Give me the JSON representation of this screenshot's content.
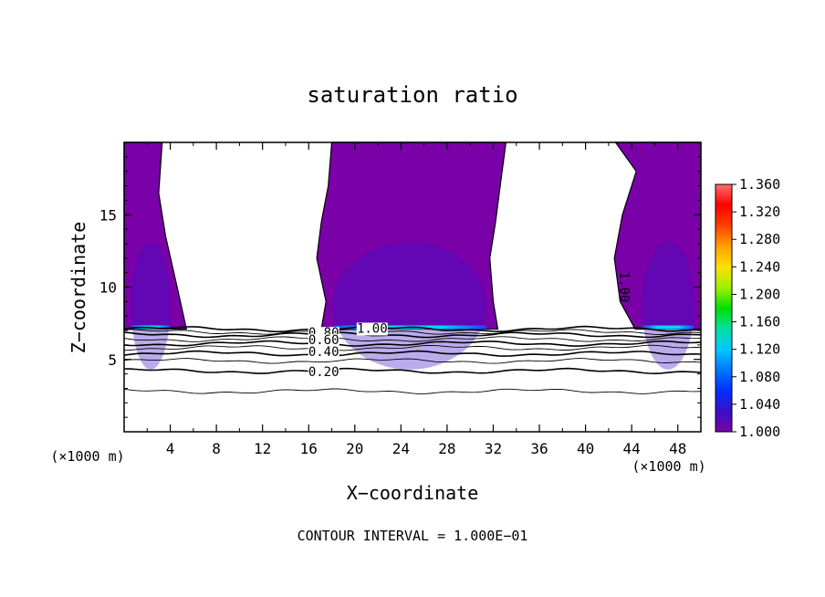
{
  "chart_data": {
    "type": "heatmap",
    "title": "saturation ratio",
    "xlabel": "X−coordinate",
    "ylabel": "Z−coordinate",
    "x_unit": "(×1000 m)",
    "z_unit": "(×1000 m)",
    "xlim": [
      0,
      50
    ],
    "ylim": [
      0,
      20
    ],
    "x_ticks": [
      4,
      8,
      12,
      16,
      20,
      24,
      28,
      32,
      36,
      40,
      44,
      48
    ],
    "y_ticks": [
      5,
      10,
      15
    ],
    "footer": "CONTOUR INTERVAL = 1.000E−01",
    "colorbar": {
      "min": 1.0,
      "max": 1.36,
      "ticks": [
        "1.360",
        "1.320",
        "1.280",
        "1.240",
        "1.200",
        "1.160",
        "1.120",
        "1.080",
        "1.040",
        "1.000"
      ],
      "colors": [
        "#7a00a8",
        "#3a10c8",
        "#0030ff",
        "#0078ff",
        "#00c8ff",
        "#00e0a0",
        "#00e000",
        "#a0f000",
        "#ffe000",
        "#ffa000",
        "#ff4000",
        "#ff0000",
        "#ff7070"
      ]
    },
    "contour_labels": [
      {
        "text": "1.00",
        "x": 21.5,
        "z": 7.1
      },
      {
        "text": "0.80",
        "x": 17.3,
        "z": 6.8
      },
      {
        "text": "0.60",
        "x": 17.3,
        "z": 6.3
      },
      {
        "text": "0.40",
        "x": 17.3,
        "z": 5.5
      },
      {
        "text": "0.20",
        "x": 17.3,
        "z": 4.1
      },
      {
        "text": "1.00",
        "x": 43.3,
        "z": 10.0
      }
    ],
    "supersaturated_regions": [
      {
        "name": "left",
        "x_ranges": [
          [
            0,
            3.3
          ],
          [
            0,
            3.0
          ],
          [
            0,
            3.6
          ],
          [
            0,
            4.6
          ],
          [
            0,
            5.4
          ]
        ],
        "z_levels": [
          20,
          16.5,
          13.5,
          10,
          7.1
        ]
      },
      {
        "name": "center",
        "x_ranges": [
          [
            18.0,
            33.1
          ],
          [
            17.7,
            32.6
          ],
          [
            17.1,
            32.2
          ],
          [
            16.7,
            31.7
          ],
          [
            17.5,
            32.0
          ],
          [
            17.1,
            32.4
          ]
        ],
        "z_levels": [
          20,
          17,
          14.5,
          12,
          9,
          7.1
        ]
      },
      {
        "name": "right",
        "x_ranges": [
          [
            42.6,
            50
          ],
          [
            44.4,
            50
          ],
          [
            43.2,
            50
          ],
          [
            42.5,
            50
          ],
          [
            43.0,
            50
          ],
          [
            44.3,
            50
          ]
        ],
        "z_levels": [
          20,
          18,
          15,
          12,
          9,
          7.1
        ]
      }
    ],
    "contour_levels": [
      {
        "value": 1.0,
        "z": 7.1
      },
      {
        "value": 0.9,
        "z": 6.9
      },
      {
        "value": 0.8,
        "z": 6.7
      },
      {
        "value": 0.7,
        "z": 6.4
      },
      {
        "value": 0.6,
        "z": 6.1
      },
      {
        "value": 0.5,
        "z": 5.8
      },
      {
        "value": 0.4,
        "z": 5.4
      },
      {
        "value": 0.3,
        "z": 4.9
      },
      {
        "value": 0.2,
        "z": 4.2
      },
      {
        "value": 0.1,
        "z": 2.8
      }
    ]
  }
}
